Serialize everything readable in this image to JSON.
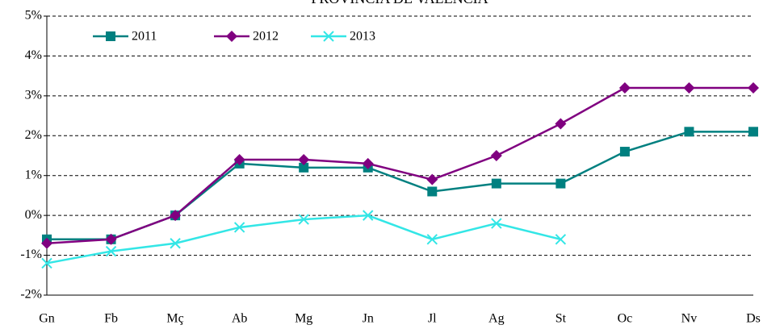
{
  "chart_data": {
    "type": "line",
    "title": "PROVINCIA DE VALENCIA",
    "categories": [
      "Gn",
      "Fb",
      "Mç",
      "Ab",
      "Mg",
      "Jn",
      "Jl",
      "Ag",
      "St",
      "Oc",
      "Nv",
      "Ds"
    ],
    "series": [
      {
        "name": "2011",
        "color": "#008080",
        "marker": "square",
        "values": [
          -0.6,
          -0.6,
          0,
          1.3,
          1.2,
          1.2,
          0.6,
          0.8,
          0.8,
          1.6,
          2.1,
          2.1
        ]
      },
      {
        "name": "2012",
        "color": "#800080",
        "marker": "diamond",
        "values": [
          -0.7,
          -0.6,
          0,
          1.4,
          1.4,
          1.3,
          0.9,
          1.5,
          2.3,
          3.2,
          3.2,
          3.2
        ]
      },
      {
        "name": "2013",
        "color": "#33e6e6",
        "marker": "x",
        "values": [
          -1.2,
          -0.9,
          -0.7,
          -0.3,
          -0.1,
          0,
          -0.6,
          -0.2,
          -0.6,
          null,
          null,
          null
        ]
      }
    ],
    "ylim": [
      -2,
      5
    ],
    "yticks": [
      {
        "value": -2,
        "label": "-2%"
      },
      {
        "value": -1,
        "label": "-1%"
      },
      {
        "value": 0,
        "label": "0%"
      },
      {
        "value": 1,
        "label": "1%"
      },
      {
        "value": 2,
        "label": "2%"
      },
      {
        "value": 3,
        "label": "3%"
      },
      {
        "value": 4,
        "label": "4%"
      },
      {
        "value": 5,
        "label": "5%"
      }
    ],
    "grid": true,
    "legend": "top-left"
  }
}
